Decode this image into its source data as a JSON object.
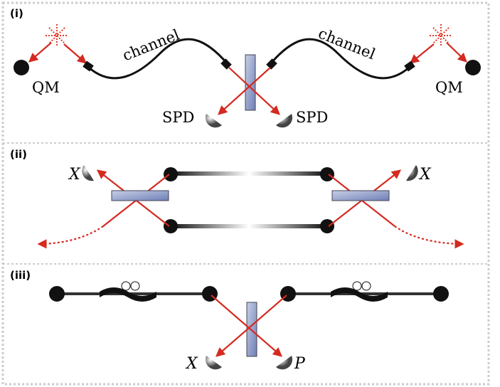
{
  "panels": [
    {
      "label": "(i)",
      "channel_left": "channel",
      "channel_right": "channel",
      "memory_left": "QM",
      "memory_right": "QM",
      "detector_left": "SPD",
      "detector_right": "SPD"
    },
    {
      "label": "(ii)",
      "detector_left": "X",
      "detector_right": "X"
    },
    {
      "label": "(iii)",
      "detector_left": "X",
      "detector_right": "P"
    }
  ]
}
